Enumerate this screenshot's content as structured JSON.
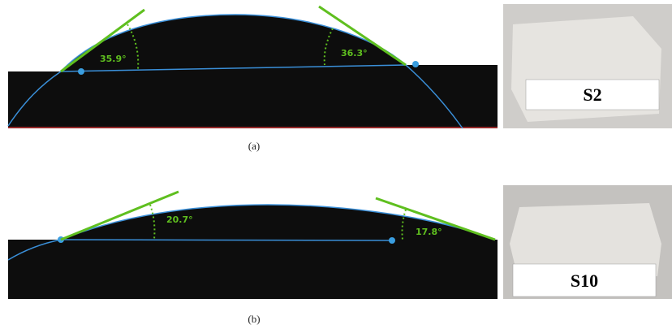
{
  "panels": [
    {
      "label": "(a)",
      "left_angle": "35.9°",
      "right_angle": "36.3°",
      "sample": "S2"
    },
    {
      "label": "(b)",
      "left_angle": "20.7°",
      "right_angle": "17.8°",
      "sample": "S10"
    }
  ]
}
